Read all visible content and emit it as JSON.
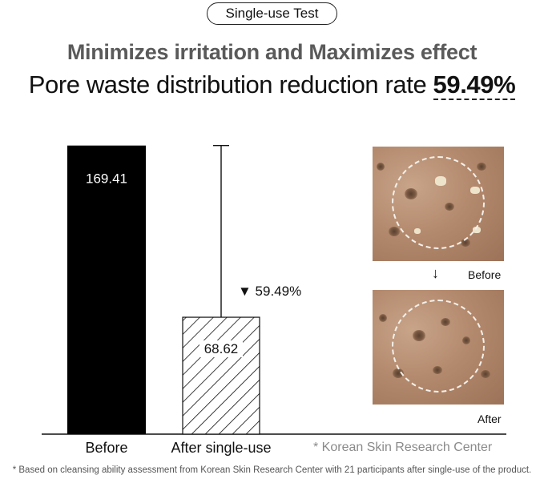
{
  "badge": "Single-use Test",
  "subtitle": "Minimizes irritation and Maximizes effect",
  "title_prefix": "Pore waste distribution reduction rate",
  "title_highlight": "59.49%",
  "chart_data": {
    "type": "bar",
    "categories": [
      "Before",
      "After single-use"
    ],
    "values": [
      169.41,
      68.62
    ],
    "value_labels": [
      "169.41",
      "68.62"
    ],
    "error_bar_top": [
      null,
      169.41
    ],
    "annotation": "▼ 59.49%",
    "ylim": [
      0,
      205
    ],
    "colors": {
      "before": "#000000",
      "after_hatch": "#111111",
      "axis": "#111111"
    }
  },
  "source_note": "* Korean Skin Research Center",
  "footnote": "* Based on cleansing ability assessment from Korean Skin Research Center with 21 participants after single-use of the product.",
  "photos": {
    "before_label": "Before",
    "after_label": "After",
    "arrow": "↓"
  }
}
